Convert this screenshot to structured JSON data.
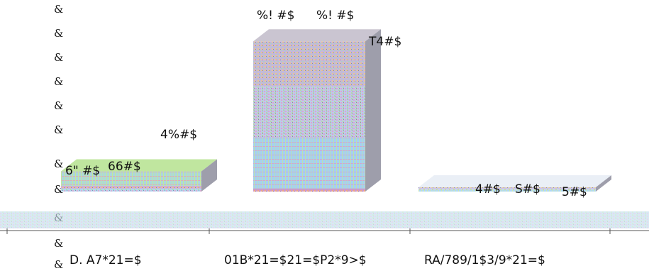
{
  "chart_data": {
    "type": "bar",
    "style": "3d-stacked-glitched",
    "y_tick_labels": [
      "&",
      "&",
      "&",
      "&",
      "&",
      "&",
      "&",
      "&",
      "&",
      "&",
      "&"
    ],
    "categories": [
      "D. A7*21=$",
      "01B*21=$21=$P2*9>$",
      "RA/789/1$3/9*21=$"
    ],
    "stacks": [
      {
        "category": "D. A7*21=$",
        "segments": [
          {
            "value": 0.6,
            "label": "6\" #$",
            "color": "#9fd0f0"
          },
          {
            "value": 0.5,
            "label": "66#$",
            "color": "#e6a1c8"
          },
          {
            "value": 2.8,
            "label": "4%#$",
            "color": "#bde59a"
          }
        ]
      },
      {
        "category": "01B*21=$21=$P2*9>$",
        "segments": [
          {
            "value": 0.6,
            "label": "",
            "color": "#e84c9a"
          },
          {
            "value": 9.9,
            "label": "%! #$",
            "color": "#9fc7f5"
          },
          {
            "value": 9.9,
            "label": "%! #$",
            "color": "#c4a3d6"
          },
          {
            "value": 8.6,
            "label": "T4#$",
            "color": "#c7c2cf"
          }
        ]
      },
      {
        "category": "RA/789/1$3/9*21=$",
        "segments": [
          {
            "value": 0.1,
            "label": "4#$",
            "color": "#cfe8f5"
          },
          {
            "value": 0.1,
            "label": "S#$",
            "color": "#f0c9de"
          },
          {
            "value": 0.1,
            "label": "5#$",
            "color": "#e9eef5"
          }
        ]
      }
    ],
    "floor_color": "#c8e1ee",
    "axis_color": "#555555",
    "grid": false,
    "legend": "none"
  }
}
